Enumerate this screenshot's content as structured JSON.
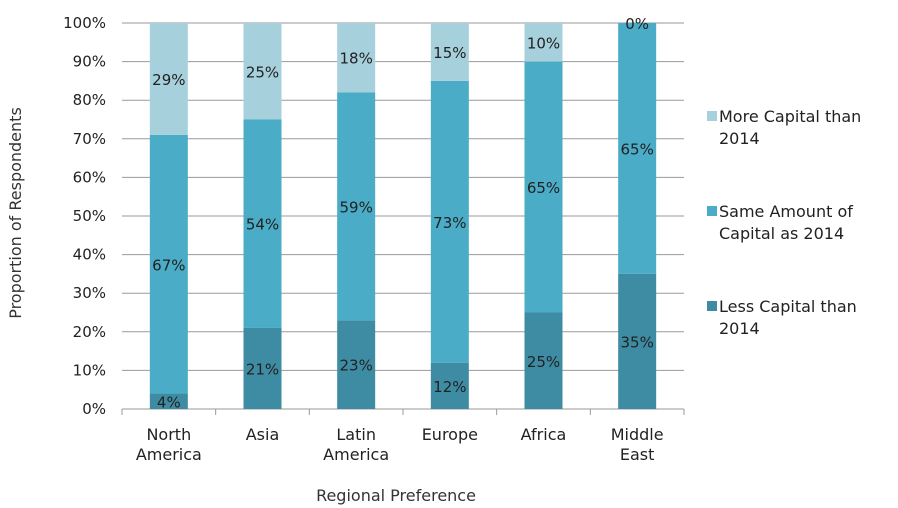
{
  "chart_data": {
    "type": "bar",
    "stacked": true,
    "xlabel": "Regional Preference",
    "ylabel": "Proportion of Respondents",
    "ylim": [
      0,
      100
    ],
    "y_ticks": [
      "0%",
      "10%",
      "20%",
      "30%",
      "40%",
      "50%",
      "60%",
      "70%",
      "80%",
      "90%",
      "100%"
    ],
    "grid": "horizontal",
    "legend_position": "right",
    "categories": [
      [
        "North",
        "America"
      ],
      [
        "Asia"
      ],
      [
        "Latin",
        "America"
      ],
      [
        "Europe"
      ],
      [
        "Africa"
      ],
      [
        "Middle",
        "East"
      ]
    ],
    "series": [
      {
        "name": "Less Capital than 2014",
        "legend_lines": [
          "Less Capital than",
          "2014"
        ],
        "color": "#3e8ca3",
        "values": [
          4,
          21,
          23,
          12,
          25,
          35
        ],
        "labels": [
          "4%",
          "21%",
          "23%",
          "12%",
          "25%",
          "35%"
        ]
      },
      {
        "name": "Same Amount of Capital as 2014",
        "legend_lines": [
          "Same Amount of",
          "Capital as 2014"
        ],
        "color": "#4aacc6",
        "values": [
          67,
          54,
          59,
          73,
          65,
          65
        ],
        "labels": [
          "67%",
          "54%",
          "59%",
          "73%",
          "65%",
          "65%"
        ]
      },
      {
        "name": "More Capital than 2014",
        "legend_lines": [
          "More Capital than",
          "2014"
        ],
        "color": "#a7d0dd",
        "values": [
          29,
          25,
          18,
          15,
          10,
          0
        ],
        "labels": [
          "29%",
          "25%",
          "18%",
          "15%",
          "10%",
          "0%"
        ]
      }
    ]
  }
}
